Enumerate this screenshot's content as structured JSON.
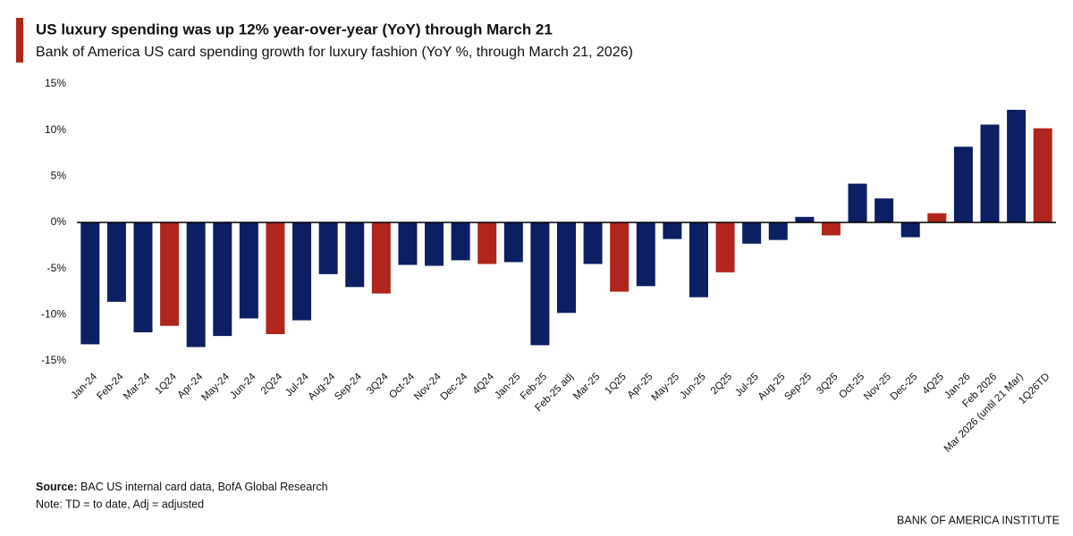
{
  "chart_data": {
    "type": "bar",
    "title": "US luxury spending was up 12% year-over-year (YoY) through March 21",
    "subtitle": "Bank of America US card spending growth for luxury fashion (YoY %, through March 21, 2026)",
    "categories": [
      "Jan-24",
      "Feb-24",
      "Mar-24",
      "1Q24",
      "Apr-24",
      "May-24",
      "Jun-24",
      "2Q24",
      "Jul-24",
      "Aug-24",
      "Sep-24",
      "3Q24",
      "Oct-24",
      "Nov-24",
      "Dec-24",
      "4Q24",
      "Jan-25",
      "Feb-25",
      "Feb-25 adj",
      "Mar-25",
      "1Q25",
      "Apr-25",
      "May-25",
      "Jun-25",
      "2Q25",
      "Jul-25",
      "Aug-25",
      "Sep-25",
      "3Q25",
      "Oct-25",
      "Nov-25",
      "Dec-25",
      "4Q25",
      "Jan-26",
      "Feb 2026",
      "Mar 2026 (until 21 Mar)",
      "1Q26TD"
    ],
    "values": [
      -13.2,
      -8.6,
      -11.9,
      -11.2,
      -13.5,
      -12.3,
      -10.4,
      -12.1,
      -10.6,
      -5.6,
      -7.0,
      -7.7,
      -4.6,
      -4.7,
      -4.1,
      -4.5,
      -4.3,
      -13.3,
      -9.8,
      -4.5,
      -7.5,
      -6.9,
      -1.8,
      -8.1,
      -5.4,
      -2.3,
      -1.9,
      0.6,
      -1.4,
      4.2,
      2.6,
      -1.6,
      1.0,
      8.2,
      10.6,
      12.2,
      10.2
    ],
    "colors": [
      "#0c1f63",
      "#0c1f63",
      "#0c1f63",
      "#b0261c",
      "#0c1f63",
      "#0c1f63",
      "#0c1f63",
      "#b0261c",
      "#0c1f63",
      "#0c1f63",
      "#0c1f63",
      "#b0261c",
      "#0c1f63",
      "#0c1f63",
      "#0c1f63",
      "#b0261c",
      "#0c1f63",
      "#0c1f63",
      "#0c1f63",
      "#0c1f63",
      "#b0261c",
      "#0c1f63",
      "#0c1f63",
      "#0c1f63",
      "#b0261c",
      "#0c1f63",
      "#0c1f63",
      "#0c1f63",
      "#b0261c",
      "#0c1f63",
      "#0c1f63",
      "#0c1f63",
      "#b0261c",
      "#0c1f63",
      "#0c1f63",
      "#0c1f63",
      "#b0261c"
    ],
    "ylim": [
      -15,
      15
    ],
    "yticks": [
      {
        "value": -15,
        "label": "-15%"
      },
      {
        "value": -10,
        "label": "-10%"
      },
      {
        "value": -5,
        "label": "-5%"
      },
      {
        "value": 0,
        "label": "0%"
      },
      {
        "value": 5,
        "label": "5%"
      },
      {
        "value": 10,
        "label": "10%"
      },
      {
        "value": 15,
        "label": "15%"
      }
    ],
    "source_label": "Source:",
    "source_text": "BAC US internal card data, BofA Global Research",
    "note": "Note: TD = to date, Adj = adjusted",
    "footer": "BANK OF AMERICA INSTITUTE"
  }
}
